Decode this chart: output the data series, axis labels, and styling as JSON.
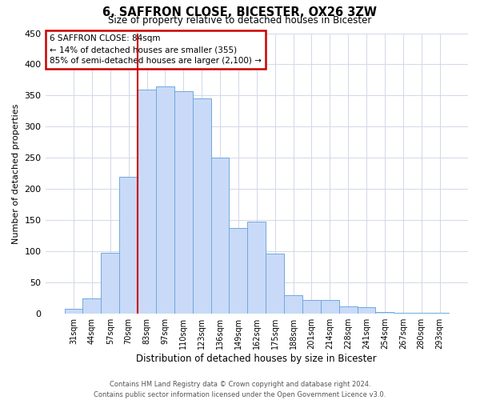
{
  "title": "6, SAFFRON CLOSE, BICESTER, OX26 3ZW",
  "subtitle": "Size of property relative to detached houses in Bicester",
  "xlabel": "Distribution of detached houses by size in Bicester",
  "ylabel": "Number of detached properties",
  "bar_labels": [
    "31sqm",
    "44sqm",
    "57sqm",
    "70sqm",
    "83sqm",
    "97sqm",
    "110sqm",
    "123sqm",
    "136sqm",
    "149sqm",
    "162sqm",
    "175sqm",
    "188sqm",
    "201sqm",
    "214sqm",
    "228sqm",
    "241sqm",
    "254sqm",
    "267sqm",
    "280sqm",
    "293sqm"
  ],
  "bar_values": [
    8,
    25,
    98,
    220,
    360,
    365,
    357,
    345,
    250,
    138,
    148,
    97,
    30,
    22,
    22,
    12,
    10,
    3,
    2,
    1,
    2
  ],
  "bar_color": "#c9daf8",
  "bar_edge_color": "#6fa8dc",
  "annotation_box_text": "6 SAFFRON CLOSE: 84sqm\n← 14% of detached houses are smaller (355)\n85% of semi-detached houses are larger (2,100) →",
  "annotation_box_color": "#cc0000",
  "annotation_box_bg": "#ffffff",
  "marker_bar_index": 4,
  "ylim": [
    0,
    450
  ],
  "yticks": [
    0,
    50,
    100,
    150,
    200,
    250,
    300,
    350,
    400,
    450
  ],
  "footer_line1": "Contains HM Land Registry data © Crown copyright and database right 2024.",
  "footer_line2": "Contains public sector information licensed under the Open Government Licence v3.0.",
  "bg_color": "#ffffff",
  "grid_color": "#d0d8e8"
}
